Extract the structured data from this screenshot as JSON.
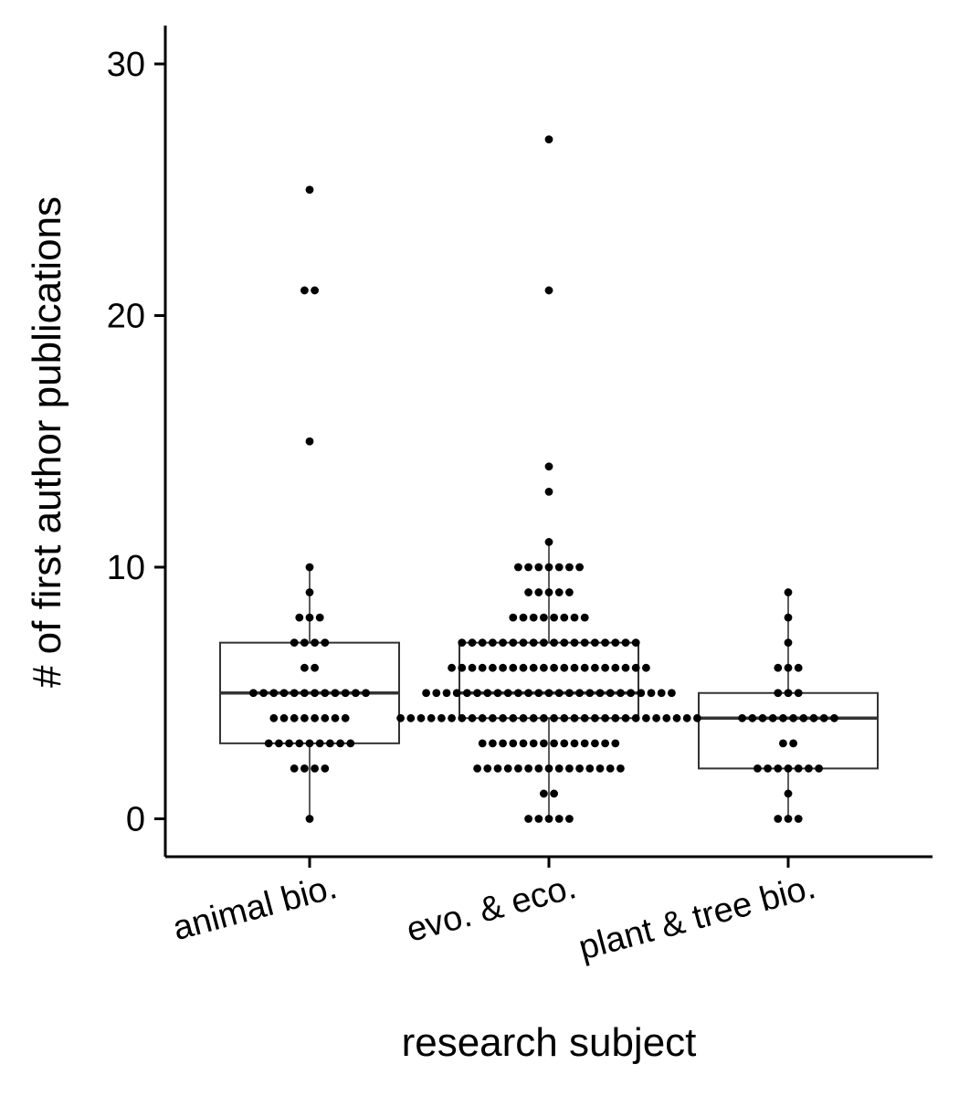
{
  "chart_data": {
    "type": "boxplot-dotplot",
    "title": "",
    "xlabel": "research subject",
    "ylabel": "# of first author publications",
    "ylim": [
      -1.5,
      31.5
    ],
    "yticks": [
      0,
      10,
      20,
      30
    ],
    "grid": false,
    "categories": [
      "animal bio.",
      "evo. & eco.",
      "plant & tree bio."
    ],
    "series": [
      {
        "box": {
          "q1": 3,
          "median": 5,
          "q3": 7,
          "whisker_low": 0,
          "whisker_high": 10
        },
        "values": [
          0,
          2,
          2,
          2,
          2,
          3,
          3,
          3,
          3,
          3,
          3,
          3,
          3,
          3,
          4,
          4,
          4,
          4,
          4,
          4,
          4,
          4,
          5,
          5,
          5,
          5,
          5,
          5,
          5,
          5,
          5,
          5,
          5,
          5,
          6,
          6,
          7,
          7,
          7,
          7,
          8,
          8,
          8,
          9,
          10,
          15,
          21,
          21,
          25
        ]
      },
      {
        "box": {
          "q1": 4,
          "median": 5,
          "q3": 7,
          "whisker_low": 0,
          "whisker_high": 11
        },
        "values": [
          0,
          0,
          0,
          0,
          0,
          1,
          1,
          2,
          2,
          2,
          2,
          2,
          2,
          2,
          2,
          2,
          2,
          2,
          2,
          2,
          2,
          2,
          3,
          3,
          3,
          3,
          3,
          3,
          3,
          3,
          3,
          3,
          3,
          3,
          3,
          3,
          4,
          4,
          4,
          4,
          4,
          4,
          4,
          4,
          4,
          4,
          4,
          4,
          4,
          4,
          4,
          4,
          4,
          4,
          4,
          4,
          4,
          4,
          4,
          4,
          4,
          4,
          4,
          4,
          4,
          4,
          5,
          5,
          5,
          5,
          5,
          5,
          5,
          5,
          5,
          5,
          5,
          5,
          5,
          5,
          5,
          5,
          5,
          5,
          5,
          5,
          5,
          5,
          5,
          5,
          5,
          6,
          6,
          6,
          6,
          6,
          6,
          6,
          6,
          6,
          6,
          6,
          6,
          6,
          6,
          6,
          6,
          6,
          6,
          6,
          6,
          7,
          7,
          7,
          7,
          7,
          7,
          7,
          7,
          7,
          7,
          7,
          7,
          7,
          7,
          7,
          7,
          7,
          7,
          8,
          8,
          8,
          8,
          8,
          8,
          8,
          8,
          9,
          9,
          9,
          9,
          9,
          10,
          10,
          10,
          10,
          10,
          10,
          10,
          11,
          13,
          14,
          21,
          27
        ]
      },
      {
        "box": {
          "q1": 2,
          "median": 4,
          "q3": 5,
          "whisker_low": 0,
          "whisker_high": 9
        },
        "values": [
          0,
          0,
          0,
          1,
          2,
          2,
          2,
          2,
          2,
          2,
          2,
          3,
          3,
          4,
          4,
          4,
          4,
          4,
          4,
          4,
          4,
          4,
          4,
          5,
          5,
          5,
          6,
          6,
          6,
          7,
          8,
          9
        ]
      }
    ]
  }
}
